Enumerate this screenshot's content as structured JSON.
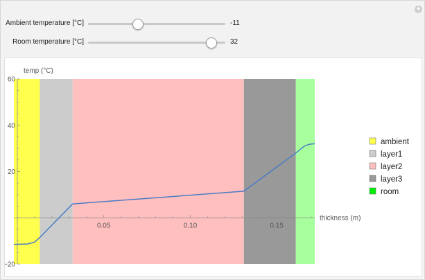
{
  "controls": {
    "ambient": {
      "label": "Ambient temperature [°C]",
      "value": "-11",
      "min": -40,
      "max": 40,
      "current": -11
    },
    "room": {
      "label": "Room temperature [°C]",
      "value": "32",
      "min": -40,
      "max": 40,
      "current": 32
    },
    "add_icon": "plus-circle-icon"
  },
  "chart_data": {
    "type": "line",
    "xlabel": "thickness (m)",
    "ylabel": "temp (°C)",
    "xlim": [
      -0.002,
      0.172
    ],
    "ylim": [
      -20,
      60
    ],
    "xticks": [
      {
        "v": 0.05,
        "label": "0.05"
      },
      {
        "v": 0.1,
        "label": "0.10"
      },
      {
        "v": 0.15,
        "label": "0.15"
      }
    ],
    "yticks": [
      {
        "v": 60,
        "label": "60"
      },
      {
        "v": 40,
        "label": "40"
      },
      {
        "v": 20,
        "label": "20"
      },
      {
        "v": -20,
        "label": "−20"
      }
    ],
    "regions": [
      {
        "name": "ambient",
        "from": -0.002,
        "to": 0.013,
        "color": "#ffff4d"
      },
      {
        "name": "layer1",
        "from": 0.013,
        "to": 0.032,
        "color": "#cccccc"
      },
      {
        "name": "layer2",
        "from": 0.032,
        "to": 0.131,
        "color": "#ffbfbf"
      },
      {
        "name": "layer3",
        "from": 0.131,
        "to": 0.161,
        "color": "#999999"
      },
      {
        "name": "room",
        "from": 0.161,
        "to": 0.172,
        "color": "#a8ff9e"
      }
    ],
    "legend": [
      {
        "label": "ambient",
        "color": "#ffff4d"
      },
      {
        "label": "layer1",
        "color": "#cccccc"
      },
      {
        "label": "layer2",
        "color": "#ffbfbf"
      },
      {
        "label": "layer3",
        "color": "#999999"
      },
      {
        "label": "room",
        "color": "#00ee00"
      }
    ],
    "line_color": "#4a7cc4",
    "series": [
      {
        "x": [
          -0.002,
          0.006,
          0.01,
          0.013,
          0.032,
          0.131,
          0.161,
          0.166,
          0.169,
          0.172
        ],
        "y": [
          -11.5,
          -11.3,
          -10.5,
          -8.5,
          6.0,
          11.5,
          28.0,
          31.0,
          31.8,
          32.0
        ]
      }
    ]
  }
}
